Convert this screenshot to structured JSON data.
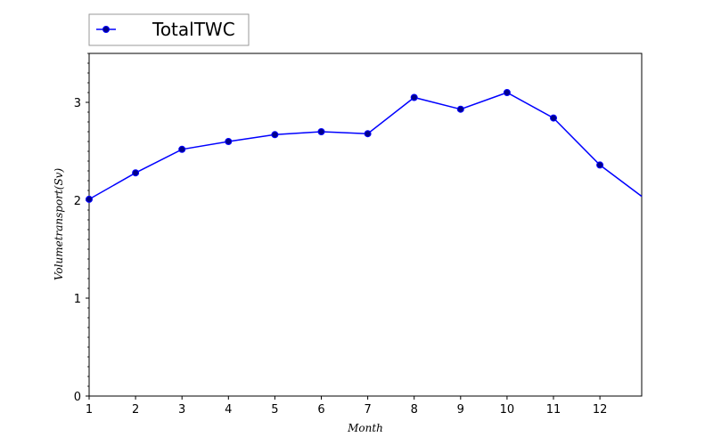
{
  "chart_data": {
    "type": "line",
    "title": "",
    "xlabel": "Month",
    "ylabel": "Volumetransport(Sv)",
    "x_ticks": [
      "1",
      "2",
      "3",
      "4",
      "5",
      "6",
      "7",
      "8",
      "9",
      "10",
      "11",
      "12"
    ],
    "y_ticks": [
      "0",
      "1",
      "2",
      "3"
    ],
    "xlim": [
      1,
      12.9
    ],
    "ylim": [
      0,
      3.5
    ],
    "grid": false,
    "legend_position": "top-left, above plot",
    "series": [
      {
        "name": "TotalTWC",
        "color": "#0000ff",
        "marker_color": "#00008b",
        "x": [
          1,
          2,
          3,
          4,
          5,
          6,
          7,
          8,
          9,
          10,
          11,
          12,
          12.9
        ],
        "y": [
          2.01,
          2.28,
          2.52,
          2.6,
          2.67,
          2.7,
          2.68,
          3.05,
          2.93,
          3.1,
          2.84,
          2.36,
          2.04
        ],
        "marker_x": [
          1,
          2,
          3,
          4,
          5,
          6,
          7,
          8,
          9,
          10,
          11,
          12
        ]
      }
    ]
  }
}
